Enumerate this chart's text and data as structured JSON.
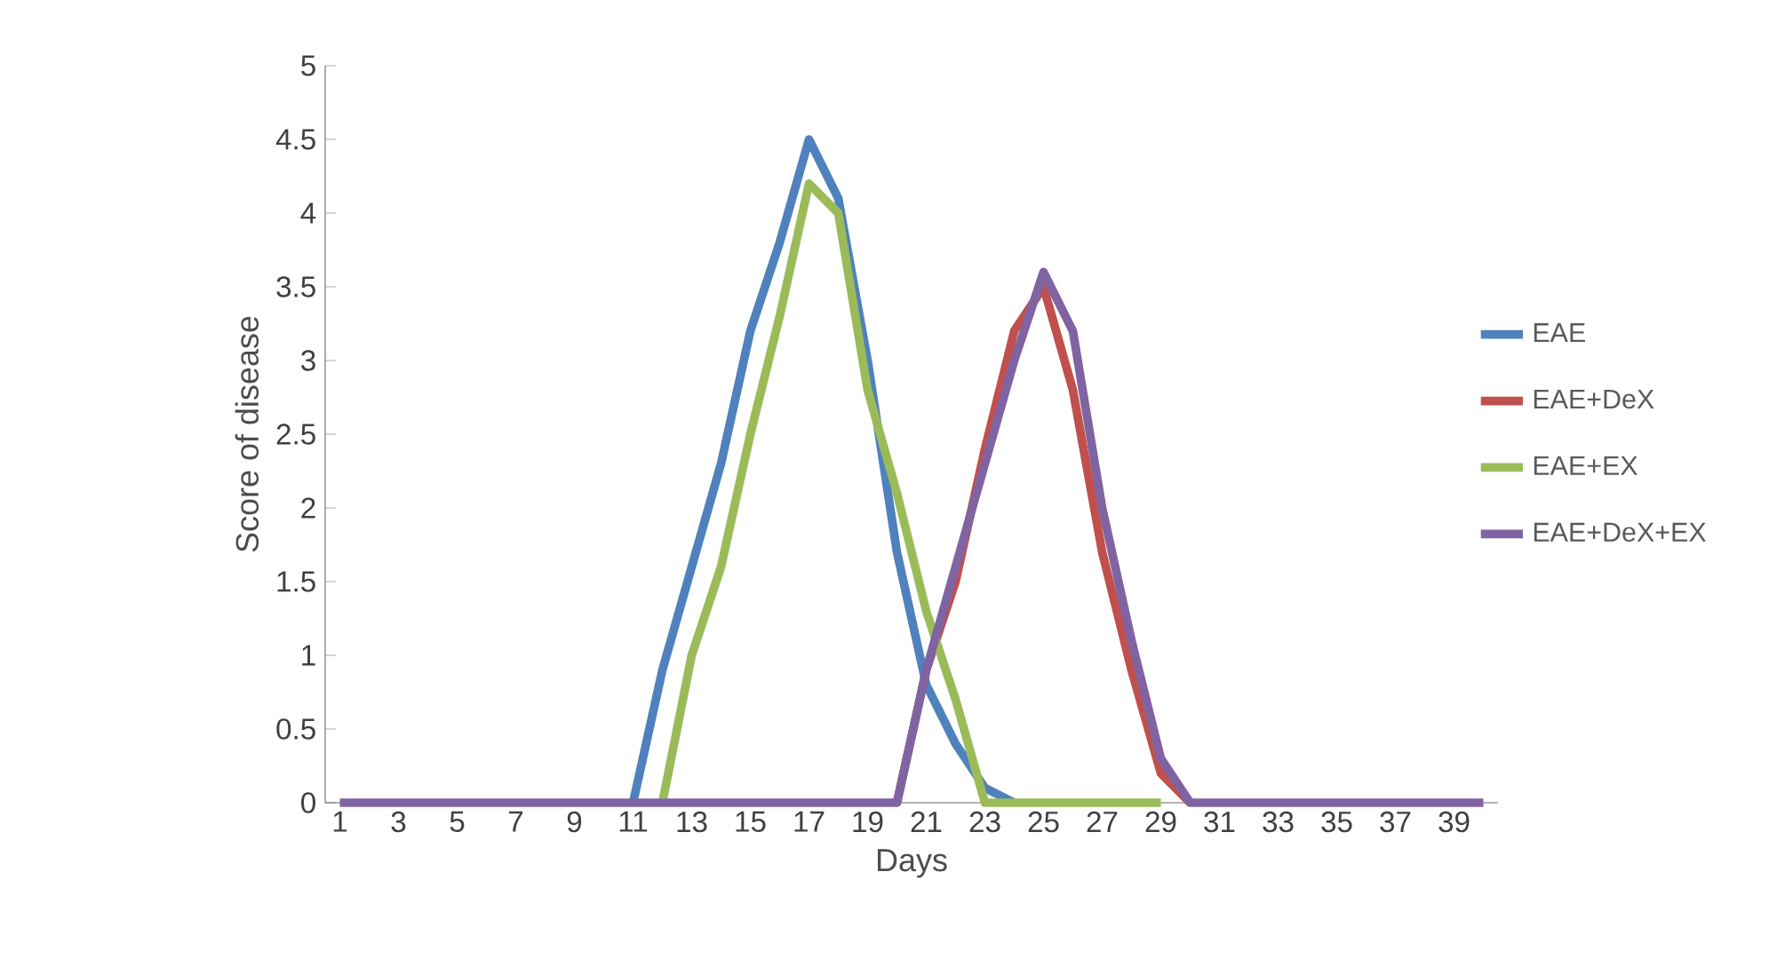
{
  "chart_data": {
    "type": "line",
    "xlabel": "Days",
    "ylabel": "Score of disease",
    "categories": [
      "1",
      null,
      "3",
      null,
      "5",
      null,
      "7",
      null,
      "9",
      null,
      "11",
      null,
      "13",
      null,
      "15",
      null,
      "17",
      null,
      "19",
      null,
      "21",
      null,
      "23",
      null,
      "25",
      null,
      "27",
      null,
      "29",
      null,
      "31",
      null,
      "33",
      null,
      "35",
      null,
      "37",
      null,
      "39",
      null
    ],
    "series": [
      {
        "name": "EAE",
        "color": "#4f81bd",
        "values": [
          null,
          null,
          null,
          null,
          null,
          null,
          null,
          null,
          null,
          null,
          0,
          0.9,
          1.6,
          2.3,
          3.2,
          3.8,
          4.5,
          4.1,
          3.0,
          1.7,
          0.8,
          0.4,
          0.1,
          0,
          null,
          null,
          null,
          null,
          null,
          null,
          null,
          null,
          null,
          null,
          null,
          null,
          null,
          null,
          null,
          null
        ]
      },
      {
        "name": "EAE+DeX",
        "color": "#c0504d",
        "values": [
          null,
          null,
          null,
          null,
          null,
          null,
          null,
          null,
          null,
          null,
          null,
          null,
          null,
          null,
          null,
          null,
          null,
          null,
          null,
          0,
          0.9,
          1.5,
          2.4,
          3.2,
          3.5,
          2.8,
          1.7,
          0.9,
          0.2,
          0,
          null,
          null,
          null,
          null,
          null,
          null,
          null,
          null,
          null,
          null
        ]
      },
      {
        "name": "EAE+EX",
        "color": "#9bbb59",
        "values": [
          null,
          null,
          null,
          null,
          null,
          null,
          null,
          null,
          null,
          null,
          null,
          0,
          1.0,
          1.6,
          2.5,
          3.3,
          4.2,
          4.0,
          2.8,
          2.1,
          1.3,
          0.7,
          0,
          0,
          0,
          0,
          0,
          0,
          0,
          null,
          null,
          null,
          null,
          null,
          null,
          null,
          null,
          null,
          null,
          null
        ]
      },
      {
        "name": "EAE+DeX+EX",
        "color": "#8064a2",
        "values": [
          0,
          0,
          0,
          0,
          0,
          0,
          0,
          0,
          0,
          0,
          0,
          0,
          0,
          0,
          0,
          0,
          0,
          0,
          0,
          0,
          0.9,
          1.6,
          2.3,
          3.0,
          3.6,
          3.2,
          2.0,
          1.1,
          0.3,
          0,
          0,
          0,
          0,
          0,
          0,
          0,
          0,
          0,
          0,
          0
        ]
      }
    ],
    "ylim": [
      0,
      5
    ],
    "yticks": [
      0,
      0.5,
      1,
      1.5,
      2,
      2.5,
      3,
      3.5,
      4,
      4.5,
      5
    ],
    "grid": false,
    "legend": "right",
    "marker": "none",
    "line_style": "solid"
  }
}
